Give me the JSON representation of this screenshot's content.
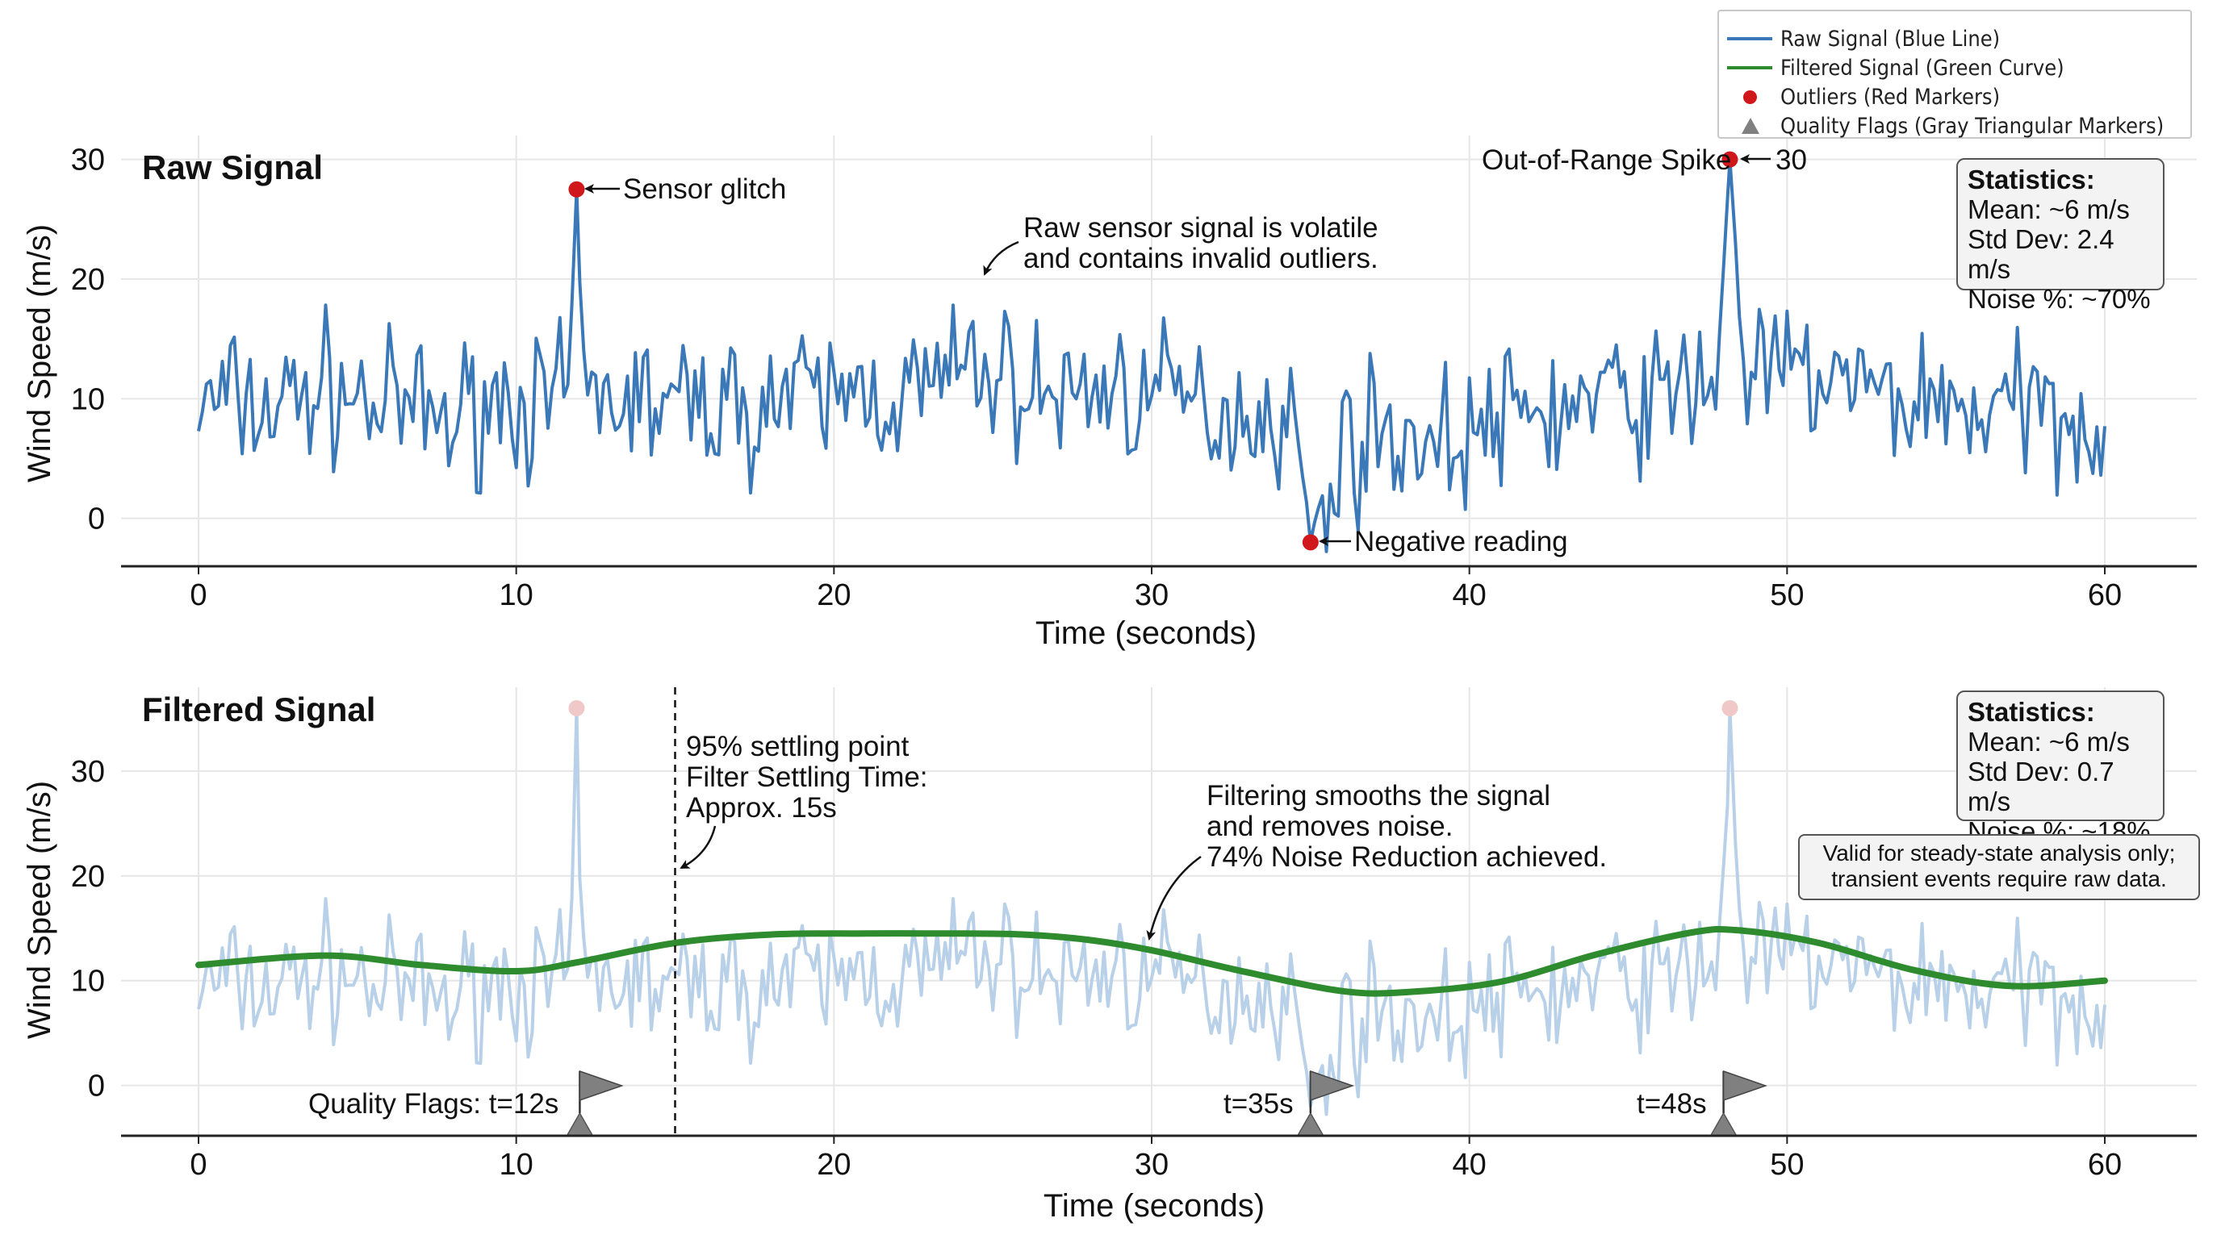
{
  "colors": {
    "raw": "#3a78b8",
    "raw_faded": "#b8d1e8",
    "filtered": "#2e8b2e",
    "outlier": "#d0181c",
    "outlier_faded": "#f0c8c8",
    "flag": "#808080",
    "grid": "#e6e6e6"
  },
  "legend": [
    {
      "label": "Raw Signal (Blue Line)",
      "symbol": "line",
      "color": "#3a78b8"
    },
    {
      "label": "Filtered Signal (Green Curve)",
      "symbol": "line",
      "color": "#2e8b2e"
    },
    {
      "label": "Outliers (Red Markers)",
      "symbol": "dot",
      "color": "#d0181c"
    },
    {
      "label": "Quality Flags (Gray Triangular Markers)",
      "symbol": "triangle",
      "color": "#808080"
    }
  ],
  "raw_panel": {
    "title": "Raw Signal",
    "stats": {
      "title": "Statistics:",
      "mean": "Mean: ~6 m/s",
      "std": "Std Dev: 2.4 m/s",
      "noise": "Noise %: ~70%"
    },
    "annotations": {
      "glitch": "Sensor glitch",
      "spike": "Out-of-Range Spike",
      "spike_value": "30",
      "negative": "Negative reading",
      "volatile_1": "Raw sensor signal is volatile",
      "volatile_2": "and contains invalid outliers."
    }
  },
  "filtered_panel": {
    "title": "Filtered Signal",
    "stats": {
      "title": "Statistics:",
      "mean": "Mean: ~6 m/s",
      "std": "Std Dev: 0.7 m/s",
      "noise": "Noise %: ~18%"
    },
    "note_1": "Valid for steady-state analysis only;",
    "note_2": "transient events require raw data.",
    "settling_1": "95% settling point",
    "settling_2": "Filter Settling Time:",
    "settling_3": "Approx. 15s",
    "smooth_1": "Filtering smooths the signal",
    "smooth_2": "and removes noise.",
    "smooth_3": "74% Noise Reduction achieved.",
    "flag_labels": [
      "Quality Flags: t=12s",
      "t=35s",
      "t=48s"
    ]
  },
  "chart_data": [
    {
      "type": "line",
      "title": "Raw Signal",
      "xlabel": "Time (seconds)",
      "ylabel": "Wind Speed (m/s)",
      "xlim": [
        -2.3,
        62.5
      ],
      "ylim": [
        -4,
        32
      ],
      "xticks": [
        0,
        10,
        20,
        30,
        40,
        50,
        60
      ],
      "yticks": [
        0,
        10,
        20,
        30
      ],
      "grid": true,
      "series": [
        {
          "name": "Raw Signal",
          "color": "#3a78b8",
          "control_x": [
            0,
            1,
            2,
            3,
            4,
            5,
            6,
            7,
            8,
            9,
            10,
            11,
            11.6,
            11.9,
            12.2,
            13,
            14,
            15,
            16,
            17,
            18,
            19,
            20,
            21,
            22,
            23,
            24,
            24.5,
            25,
            26,
            27,
            28,
            29,
            30,
            31,
            32,
            33,
            34,
            34.6,
            35,
            35.4,
            36,
            37,
            38,
            39,
            40,
            41,
            42,
            43,
            44,
            45,
            46,
            47,
            47.8,
            48.2,
            48.6,
            49,
            50,
            51,
            52,
            53,
            54,
            55,
            56,
            57,
            58,
            59,
            60
          ],
          "control_y": [
            9,
            10,
            9,
            10,
            11,
            10,
            9,
            9,
            8,
            10,
            10,
            9,
            10,
            25,
            10,
            10,
            10,
            9,
            10,
            9,
            10,
            10,
            10,
            11,
            10,
            11,
            12,
            13,
            12,
            11,
            10,
            11,
            11,
            10,
            10,
            9,
            9,
            9,
            7,
            -2,
            2,
            6,
            7,
            7,
            6,
            7,
            8,
            9,
            9,
            10,
            10,
            10,
            11,
            12,
            30,
            13,
            12,
            12,
            12,
            11,
            10,
            10,
            10,
            9,
            9,
            9,
            9,
            8
          ],
          "noise_amplitude": 4.2,
          "samples_per_second": 8
        }
      ],
      "outliers": [
        {
          "x": 11.9,
          "y": 27.5,
          "label": "Sensor glitch"
        },
        {
          "x": 48.2,
          "y": 30,
          "label": "Out-of-Range Spike"
        },
        {
          "x": 35.0,
          "y": -2,
          "label": "Negative reading"
        }
      ]
    },
    {
      "type": "line",
      "title": "Filtered Signal",
      "xlabel": "Time (seconds)",
      "ylabel": "Wind Speed (m/s)",
      "xlim": [
        -2.3,
        62.5
      ],
      "ylim": [
        -4.8,
        38
      ],
      "xticks": [
        0,
        10,
        20,
        30,
        40,
        50,
        60
      ],
      "yticks": [
        0,
        10,
        20,
        30
      ],
      "grid": true,
      "series": [
        {
          "name": "Filtered Signal",
          "color": "#2e8b2e",
          "x": [
            0,
            4,
            7,
            10,
            12,
            15,
            18,
            21,
            24,
            26,
            28,
            30,
            33,
            36,
            38,
            41,
            44,
            47,
            48.5,
            51,
            54,
            57,
            60
          ],
          "y": [
            11.5,
            12.4,
            11.5,
            10.9,
            11.8,
            13.6,
            14.4,
            14.5,
            14.5,
            14.4,
            13.9,
            12.9,
            10.8,
            9.0,
            8.9,
            9.9,
            12.5,
            14.6,
            14.8,
            13.6,
            11.0,
            9.5,
            10
          ]
        }
      ],
      "settling_time": 15,
      "faded_outliers": [
        {
          "x": 11.9,
          "y": 36
        },
        {
          "x": 48.2,
          "y": 36
        }
      ],
      "quality_flags": [
        {
          "x": 12
        },
        {
          "x": 35
        },
        {
          "x": 48
        }
      ]
    }
  ]
}
